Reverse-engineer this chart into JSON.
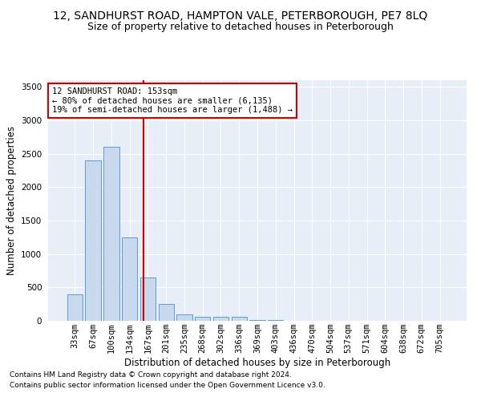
{
  "title": "12, SANDHURST ROAD, HAMPTON VALE, PETERBOROUGH, PE7 8LQ",
  "subtitle": "Size of property relative to detached houses in Peterborough",
  "xlabel": "Distribution of detached houses by size in Peterborough",
  "ylabel": "Number of detached properties",
  "categories": [
    "33sqm",
    "67sqm",
    "100sqm",
    "134sqm",
    "167sqm",
    "201sqm",
    "235sqm",
    "268sqm",
    "302sqm",
    "336sqm",
    "369sqm",
    "403sqm",
    "436sqm",
    "470sqm",
    "504sqm",
    "537sqm",
    "571sqm",
    "604sqm",
    "638sqm",
    "672sqm",
    "705sqm"
  ],
  "values": [
    400,
    2400,
    2600,
    1250,
    650,
    250,
    100,
    65,
    55,
    60,
    10,
    10,
    5,
    2,
    2,
    1,
    1,
    1,
    0,
    0,
    0
  ],
  "bar_color": "#c9d9ed",
  "bar_edge_color": "#5b9bd5",
  "vline_color": "#cc0000",
  "vline_x": 3.75,
  "annotation_text": "12 SANDHURST ROAD: 153sqm\n← 80% of detached houses are smaller (6,135)\n19% of semi-detached houses are larger (1,488) →",
  "annotation_box_color": "#ffffff",
  "annotation_box_edge": "#cc0000",
  "ylim": [
    0,
    3600
  ],
  "yticks": [
    0,
    500,
    1000,
    1500,
    2000,
    2500,
    3000,
    3500
  ],
  "footnote1": "Contains HM Land Registry data © Crown copyright and database right 2024.",
  "footnote2": "Contains public sector information licensed under the Open Government Licence v3.0.",
  "title_fontsize": 10,
  "subtitle_fontsize": 9,
  "axis_label_fontsize": 8.5,
  "tick_fontsize": 7.5,
  "plot_background": "#e8eef7"
}
